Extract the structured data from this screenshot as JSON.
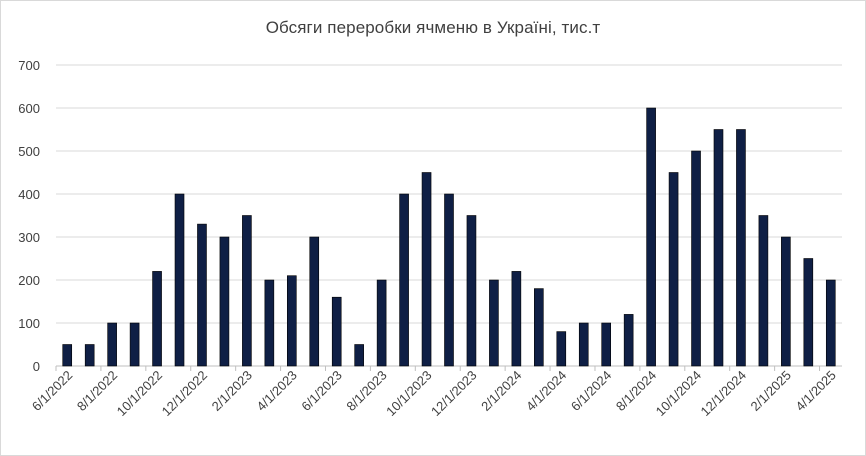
{
  "chart_data": {
    "type": "bar",
    "title": "Обсяги переробки ячменю в Україні, тис.т",
    "xlabel": "",
    "ylabel": "",
    "ylim": [
      0,
      700
    ],
    "yticks": [
      0,
      100,
      200,
      300,
      400,
      500,
      600,
      700
    ],
    "grid": true,
    "legend": "none",
    "bar_color": "#0f1f45",
    "categories": [
      "6/1/2022",
      "7/1/2022",
      "8/1/2022",
      "9/1/2022",
      "10/1/2022",
      "11/1/2022",
      "12/1/2022",
      "1/1/2023",
      "2/1/2023",
      "3/1/2023",
      "4/1/2023",
      "5/1/2023",
      "6/1/2023",
      "7/1/2023",
      "8/1/2023",
      "9/1/2023",
      "10/1/2023",
      "11/1/2023",
      "12/1/2023",
      "1/1/2024",
      "2/1/2024",
      "3/1/2024",
      "4/1/2024",
      "5/1/2024",
      "6/1/2024",
      "7/1/2024",
      "8/1/2024",
      "9/1/2024",
      "10/1/2024",
      "11/1/2024",
      "12/1/2024",
      "1/1/2025",
      "2/1/2025",
      "3/1/2025",
      "4/1/2025"
    ],
    "tick_labels": [
      "6/1/2022",
      "8/1/2022",
      "10/1/2022",
      "12/1/2022",
      "2/1/2023",
      "4/1/2023",
      "6/1/2023",
      "8/1/2023",
      "10/1/2023",
      "12/1/2023",
      "2/1/2024",
      "4/1/2024",
      "6/1/2024",
      "8/1/2024",
      "10/1/2024",
      "12/1/2024",
      "2/1/2025",
      "4/1/2025"
    ],
    "values": [
      50,
      50,
      100,
      100,
      220,
      400,
      330,
      300,
      350,
      200,
      210,
      300,
      160,
      50,
      200,
      400,
      450,
      400,
      350,
      200,
      220,
      180,
      80,
      100,
      100,
      120,
      600,
      450,
      500,
      550,
      550,
      350,
      300,
      250,
      200
    ]
  }
}
